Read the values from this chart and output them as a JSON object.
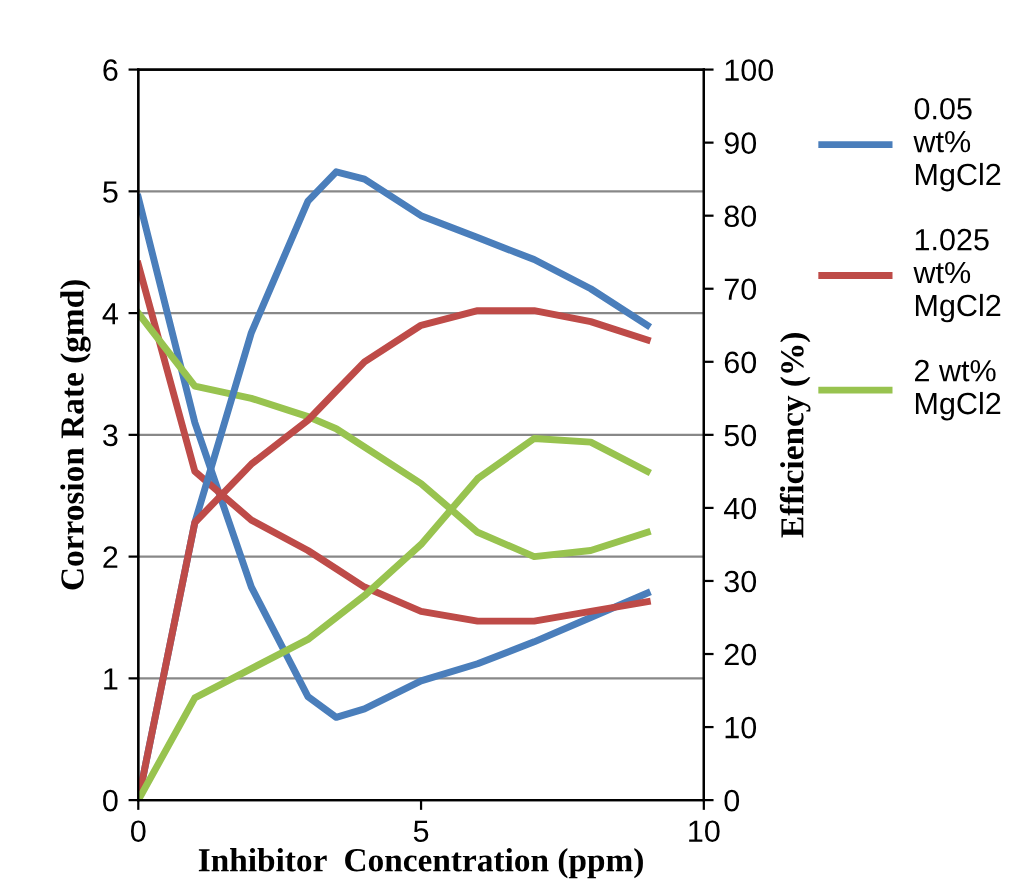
{
  "chart_data": {
    "type": "line",
    "xlabel": "Inhibitor  Concentration (ppm)",
    "ylabel": "Corrosion Rate (gmd)",
    "y2label": "Efficiency (%)",
    "xlim": [
      0,
      10
    ],
    "xticks": [
      0,
      5,
      10
    ],
    "ylim": [
      0,
      6
    ],
    "yticks": [
      0,
      1,
      2,
      3,
      4,
      5,
      6
    ],
    "y2lim": [
      0,
      100
    ],
    "y2ticks": [
      0,
      10,
      20,
      30,
      40,
      50,
      60,
      70,
      80,
      90,
      100
    ],
    "grid": "y",
    "legend": "right",
    "marker": "none",
    "line_style": "solid",
    "x": [
      0,
      1,
      2,
      3,
      3.5,
      4,
      5,
      6,
      7,
      8,
      9
    ],
    "series": [
      {
        "name": "0.05\nwt%\nMgCl2",
        "color": "#4a7ebb",
        "values": [
          4.95,
          3.1,
          1.75,
          0.85,
          0.68,
          0.75,
          0.98,
          1.12,
          1.3,
          1.5,
          1.7
        ]
      },
      {
        "name": "1.025\nwt%\nMgCl2",
        "color": "#be4b48",
        "values": [
          4.4,
          2.7,
          2.3,
          2.05,
          1.9,
          1.75,
          1.55,
          1.47,
          1.47,
          1.55,
          1.63
        ]
      },
      {
        "name": "2 wt%\nMgCl2",
        "color": "#98c34f",
        "values": [
          4.0,
          3.4,
          3.3,
          3.15,
          3.05,
          2.9,
          2.6,
          2.2,
          2.0,
          2.05,
          2.2
        ]
      },
      {
        "color": "#4a7ebb",
        "axis": "y2",
        "values": [
          0,
          38,
          64,
          82,
          86,
          85,
          80,
          77,
          74,
          70,
          65
        ]
      },
      {
        "color": "#be4b48",
        "axis": "y2",
        "values": [
          0,
          38,
          46,
          52,
          56,
          60,
          65,
          67,
          67,
          65.5,
          63
        ]
      },
      {
        "color": "#98c34f",
        "axis": "y2",
        "values": [
          0,
          14,
          18,
          22,
          25,
          28,
          35,
          44,
          49.5,
          49,
          45
        ]
      }
    ]
  }
}
